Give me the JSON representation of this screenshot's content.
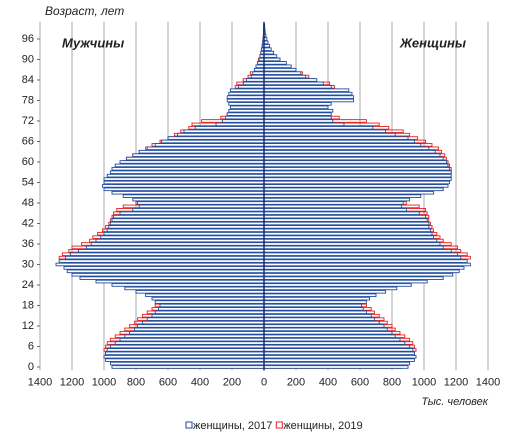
{
  "chart_data": {
    "type": "bar",
    "orientation": "horizontal",
    "y_axis_title": "Возраст, лет",
    "x_axis_label": "Тыс. человек",
    "annotations": [
      "Мужчины",
      "Женщины"
    ],
    "y": [
      0,
      1,
      2,
      3,
      4,
      5,
      6,
      7,
      8,
      9,
      10,
      11,
      12,
      13,
      14,
      15,
      16,
      17,
      18,
      19,
      20,
      21,
      22,
      23,
      24,
      25,
      26,
      27,
      28,
      29,
      30,
      31,
      32,
      33,
      34,
      35,
      36,
      37,
      38,
      39,
      40,
      41,
      42,
      43,
      44,
      45,
      46,
      47,
      48,
      49,
      50,
      51,
      52,
      53,
      54,
      55,
      56,
      57,
      58,
      59,
      60,
      61,
      62,
      63,
      64,
      65,
      66,
      67,
      68,
      69,
      70,
      71,
      72,
      73,
      74,
      75,
      76,
      77,
      78,
      79,
      80,
      81,
      82,
      83,
      84,
      85,
      86,
      87,
      88,
      89,
      90,
      91,
      92,
      93,
      94,
      95,
      96,
      97,
      98,
      99,
      100
    ],
    "series": [
      {
        "color": "#1f4ea0",
        "values": [
          -950,
          -960,
          -990,
          -1000,
          -990,
          -980,
          -960,
          -930,
          -900,
          -870,
          -840,
          -810,
          -790,
          -760,
          -730,
          -700,
          -680,
          -660,
          -650,
          -680,
          -700,
          -740,
          -800,
          -870,
          -950,
          -1050,
          -1150,
          -1200,
          -1230,
          -1250,
          -1300,
          -1280,
          -1240,
          -1210,
          -1160,
          -1110,
          -1080,
          -1050,
          -1020,
          -1000,
          -980,
          -970,
          -960,
          -950,
          -940,
          -900,
          -820,
          -780,
          -790,
          -820,
          -880,
          -950,
          -1000,
          -1010,
          -1000,
          -1000,
          -980,
          -960,
          -950,
          -930,
          -900,
          -860,
          -820,
          -780,
          -730,
          -680,
          -640,
          -600,
          -540,
          -500,
          -430,
          -300,
          -260,
          -240,
          -230,
          -220,
          -210,
          -220,
          -230,
          -230,
          -220,
          -210,
          -160,
          -130,
          -110,
          -80,
          -70,
          -60,
          -50,
          -40,
          -30,
          -25,
          -20,
          -15,
          -10,
          -8,
          -6,
          -4,
          -3,
          -2,
          -2
        ]
      },
      {
        "color": "#e02020",
        "values": [
          -900,
          -930,
          -950,
          -960,
          -990,
          -1000,
          -990,
          -980,
          -960,
          -930,
          -900,
          -870,
          -840,
          -810,
          -790,
          -760,
          -730,
          -700,
          -680,
          -660,
          -650,
          -680,
          -700,
          -740,
          -800,
          -870,
          -950,
          -1050,
          -1150,
          -1200,
          -1230,
          -1250,
          -1280,
          -1260,
          -1220,
          -1200,
          -1140,
          -1090,
          -1070,
          -1040,
          -1010,
          -990,
          -970,
          -960,
          -950,
          -940,
          -920,
          -880,
          -800,
          -760,
          -770,
          -800,
          -850,
          -920,
          -960,
          -970,
          -950,
          -950,
          -920,
          -900,
          -880,
          -860,
          -820,
          -780,
          -740,
          -700,
          -650,
          -600,
          -560,
          -520,
          -470,
          -450,
          -390,
          -270,
          -230,
          -210,
          -200,
          -190,
          -180,
          -180,
          -190,
          -190,
          -180,
          -170,
          -130,
          -100,
          -85,
          -60,
          -50,
          -40,
          -35,
          -25,
          -20,
          -15,
          -12,
          -8,
          -6,
          -4,
          -3,
          -2,
          -1
        ]
      },
      {
        "name": "женщины, 2017",
        "color": "#1f4ea0",
        "values": [
          900,
          910,
          940,
          950,
          940,
          930,
          910,
          880,
          850,
          820,
          800,
          770,
          750,
          720,
          690,
          670,
          640,
          620,
          610,
          640,
          660,
          700,
          760,
          830,
          920,
          1020,
          1120,
          1180,
          1220,
          1250,
          1290,
          1270,
          1230,
          1210,
          1170,
          1120,
          1100,
          1080,
          1060,
          1050,
          1040,
          1030,
          1030,
          1020,
          1010,
          970,
          890,
          860,
          870,
          910,
          980,
          1060,
          1120,
          1150,
          1160,
          1170,
          1170,
          1170,
          1160,
          1150,
          1140,
          1120,
          1100,
          1070,
          1030,
          980,
          940,
          900,
          820,
          760,
          680,
          500,
          430,
          420,
          420,
          430,
          400,
          420,
          560,
          560,
          550,
          530,
          420,
          370,
          330,
          260,
          230,
          200,
          170,
          140,
          100,
          80,
          60,
          45,
          35,
          25,
          18,
          12,
          8,
          5,
          4
        ]
      },
      {
        "name": "женщины, 2019",
        "color": "#e02020",
        "values": [
          860,
          890,
          910,
          920,
          940,
          950,
          940,
          930,
          910,
          880,
          850,
          820,
          800,
          770,
          750,
          720,
          690,
          670,
          640,
          620,
          610,
          640,
          660,
          700,
          760,
          830,
          920,
          1020,
          1120,
          1180,
          1220,
          1250,
          1290,
          1270,
          1230,
          1210,
          1170,
          1120,
          1100,
          1080,
          1060,
          1050,
          1040,
          1030,
          1030,
          1020,
          1010,
          970,
          890,
          860,
          870,
          910,
          980,
          1060,
          1120,
          1150,
          1160,
          1170,
          1170,
          1160,
          1150,
          1140,
          1130,
          1110,
          1090,
          1050,
          1010,
          960,
          910,
          870,
          780,
          720,
          640,
          470,
          400,
          390,
          380,
          380,
          350,
          360,
          470,
          460,
          440,
          410,
          320,
          280,
          240,
          190,
          160,
          130,
          100,
          70,
          55,
          40,
          28,
          20,
          14,
          9,
          6,
          4,
          3
        ]
      }
    ],
    "xlim": [
      -1400,
      1400
    ],
    "xticks": [
      {
        "value": -1400,
        "label": "1400"
      },
      {
        "value": -1200,
        "label": "1200"
      },
      {
        "value": -1000,
        "label": "1000"
      },
      {
        "value": -800,
        "label": "800"
      },
      {
        "value": -600,
        "label": "600"
      },
      {
        "value": -400,
        "label": "400"
      },
      {
        "value": -200,
        "label": "200"
      },
      0,
      200,
      400,
      600,
      800,
      1000,
      1200,
      1400
    ],
    "ylim": [
      -1,
      101
    ],
    "yticks": [
      0,
      6,
      12,
      18,
      24,
      30,
      36,
      42,
      48,
      54,
      60,
      66,
      72,
      78,
      84,
      90,
      96
    ],
    "grid": true
  }
}
